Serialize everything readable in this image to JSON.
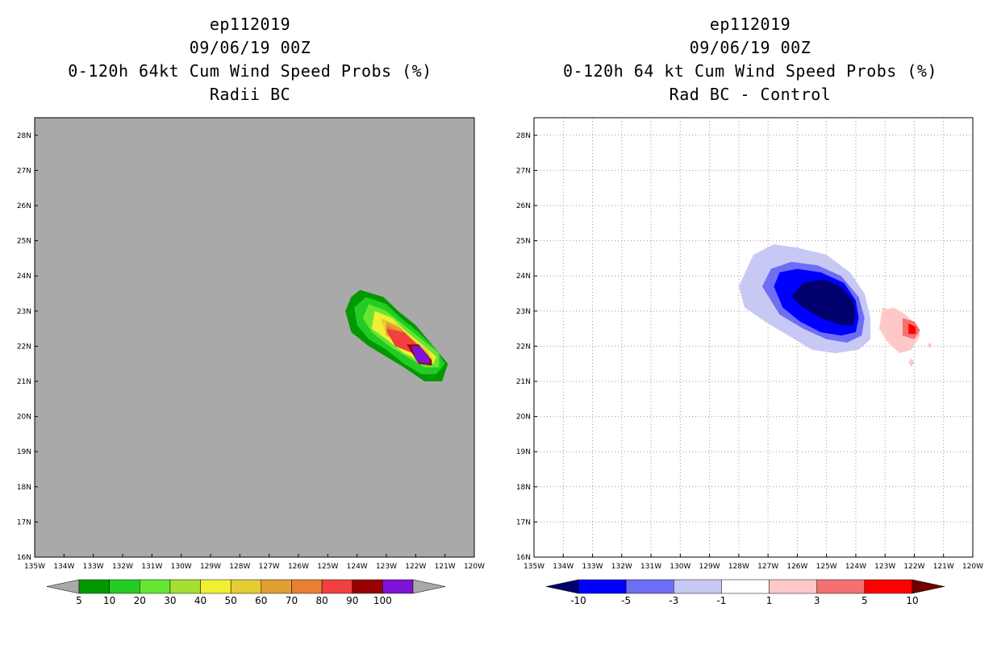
{
  "chart_data": [
    {
      "type": "heatmap",
      "title": {
        "storm": "ep112019",
        "date": "09/06/19 00Z",
        "product": "0-120h 64kt Cum Wind Speed Probs (%)",
        "subtitle": "Radii BC"
      },
      "xlim": [
        -135,
        -120
      ],
      "ylim": [
        16,
        28.5
      ],
      "x_ticks": [
        -135,
        -134,
        -133,
        -132,
        -131,
        -130,
        -129,
        -128,
        -127,
        -126,
        -125,
        -124,
        -123,
        -122,
        -121,
        -120
      ],
      "x_tick_labels": [
        "135W",
        "134W",
        "133W",
        "132W",
        "131W",
        "130W",
        "129W",
        "128W",
        "127W",
        "126W",
        "125W",
        "124W",
        "123W",
        "122W",
        "121W",
        "120W"
      ],
      "y_ticks": [
        16,
        17,
        18,
        19,
        20,
        21,
        22,
        23,
        24,
        25,
        26,
        27,
        28
      ],
      "y_tick_labels": [
        "16N",
        "17N",
        "18N",
        "19N",
        "20N",
        "21N",
        "22N",
        "23N",
        "24N",
        "25N",
        "26N",
        "27N",
        "28N"
      ],
      "grid": false,
      "background": "#a9a9a9",
      "colorbar": {
        "levels": [
          "5",
          "10",
          "20",
          "30",
          "40",
          "50",
          "60",
          "70",
          "80",
          "90",
          "100"
        ],
        "colors": [
          "#009900",
          "#22cc22",
          "#66e633",
          "#a3e033",
          "#f0f033",
          "#e6cc33",
          "#e0a033",
          "#e88033",
          "#f04040",
          "#990000",
          "#7e13d8"
        ],
        "under_color": "#a9a9a9",
        "over_color": "#a9a9a9"
      },
      "contours": [
        {
          "level": 5,
          "color": "#009900",
          "points": [
            [
              -123.9,
              23.6
            ],
            [
              -123.1,
              23.4
            ],
            [
              -122.6,
              23.0
            ],
            [
              -122.0,
              22.6
            ],
            [
              -121.4,
              22.0
            ],
            [
              -120.9,
              21.5
            ],
            [
              -121.1,
              21.0
            ],
            [
              -121.7,
              21.0
            ],
            [
              -122.4,
              21.4
            ],
            [
              -123.0,
              21.7
            ],
            [
              -123.6,
              22.0
            ],
            [
              -124.2,
              22.4
            ],
            [
              -124.4,
              23.0
            ],
            [
              -124.2,
              23.4
            ]
          ]
        },
        {
          "level": 10,
          "color": "#22cc22",
          "points": [
            [
              -123.7,
              23.4
            ],
            [
              -123.0,
              23.2
            ],
            [
              -122.5,
              22.8
            ],
            [
              -121.9,
              22.4
            ],
            [
              -121.3,
              21.9
            ],
            [
              -121.0,
              21.5
            ],
            [
              -121.3,
              21.2
            ],
            [
              -121.8,
              21.2
            ],
            [
              -122.4,
              21.5
            ],
            [
              -123.0,
              21.9
            ],
            [
              -123.6,
              22.2
            ],
            [
              -124.0,
              22.6
            ],
            [
              -124.1,
              23.1
            ]
          ]
        },
        {
          "level": 20,
          "color": "#66e633",
          "points": [
            [
              -123.6,
              23.2
            ],
            [
              -123.0,
              23.0
            ],
            [
              -122.4,
              22.6
            ],
            [
              -121.8,
              22.2
            ],
            [
              -121.2,
              21.8
            ],
            [
              -121.2,
              21.4
            ],
            [
              -121.7,
              21.4
            ],
            [
              -122.3,
              21.7
            ],
            [
              -122.9,
              22.0
            ],
            [
              -123.5,
              22.4
            ],
            [
              -123.8,
              22.8
            ]
          ]
        },
        {
          "level": 30,
          "color": "#f0f033",
          "points": [
            [
              -123.4,
              23.0
            ],
            [
              -122.8,
              22.8
            ],
            [
              -122.3,
              22.4
            ],
            [
              -121.7,
              22.0
            ],
            [
              -121.3,
              21.7
            ],
            [
              -121.4,
              21.5
            ],
            [
              -121.9,
              21.6
            ],
            [
              -122.4,
              21.8
            ],
            [
              -123.0,
              22.2
            ],
            [
              -123.5,
              22.5
            ]
          ]
        },
        {
          "level": 40,
          "color": "#e6cc33",
          "points": [
            [
              -123.2,
              22.8
            ],
            [
              -122.6,
              22.6
            ],
            [
              -122.1,
              22.2
            ],
            [
              -121.6,
              21.9
            ],
            [
              -121.4,
              21.6
            ],
            [
              -121.9,
              21.7
            ],
            [
              -122.5,
              22.0
            ],
            [
              -123.0,
              22.3
            ]
          ]
        },
        {
          "level": 50,
          "color": "#e0a033",
          "points": [
            [
              -123.0,
              22.7
            ],
            [
              -122.5,
              22.5
            ],
            [
              -122.0,
              22.1
            ],
            [
              -121.6,
              21.8
            ],
            [
              -121.5,
              21.6
            ],
            [
              -122.0,
              21.8
            ],
            [
              -122.6,
              22.1
            ],
            [
              -123.0,
              22.4
            ]
          ]
        },
        {
          "level": 60,
          "color": "#e88033",
          "points": [
            [
              -123.0,
              22.6
            ],
            [
              -122.5,
              22.4
            ],
            [
              -122.0,
              22.1
            ],
            [
              -121.6,
              21.7
            ],
            [
              -121.5,
              21.55
            ],
            [
              -122.0,
              21.75
            ],
            [
              -122.6,
              22.05
            ],
            [
              -123.0,
              22.35
            ]
          ]
        },
        {
          "level": 70,
          "color": "#f04040",
          "points": [
            [
              -123.0,
              22.5
            ],
            [
              -122.4,
              22.4
            ],
            [
              -121.95,
              22.05
            ],
            [
              -121.6,
              21.65
            ],
            [
              -121.55,
              21.55
            ],
            [
              -122.1,
              21.8
            ],
            [
              -122.7,
              22.0
            ],
            [
              -122.9,
              22.3
            ]
          ]
        },
        {
          "level": 80,
          "color": "#990000",
          "points": [
            [
              -122.3,
              22.05
            ],
            [
              -121.9,
              22.05
            ],
            [
              -121.45,
              21.6
            ],
            [
              -121.45,
              21.45
            ],
            [
              -121.9,
              21.5
            ]
          ]
        },
        {
          "level": 90,
          "color": "#7e13d8",
          "points": [
            [
              -122.15,
              22.0
            ],
            [
              -121.85,
              22.0
            ],
            [
              -121.5,
              21.6
            ],
            [
              -121.55,
              21.5
            ],
            [
              -121.95,
              21.55
            ]
          ]
        }
      ]
    },
    {
      "type": "heatmap",
      "title": {
        "storm": "ep112019",
        "date": "09/06/19 00Z",
        "product": "0-120h 64 kt Cum Wind Speed Probs (%)",
        "subtitle": "Rad BC - Control"
      },
      "xlim": [
        -135,
        -120
      ],
      "ylim": [
        16,
        28.5
      ],
      "x_ticks": [
        -135,
        -134,
        -133,
        -132,
        -131,
        -130,
        -129,
        -128,
        -127,
        -126,
        -125,
        -124,
        -123,
        -122,
        -121,
        -120
      ],
      "x_tick_labels": [
        "135W",
        "134W",
        "133W",
        "132W",
        "131W",
        "130W",
        "129W",
        "128W",
        "127W",
        "126W",
        "125W",
        "124W",
        "123W",
        "122W",
        "121W",
        "120W"
      ],
      "y_ticks": [
        16,
        17,
        18,
        19,
        20,
        21,
        22,
        23,
        24,
        25,
        26,
        27,
        28
      ],
      "y_tick_labels": [
        "16N",
        "17N",
        "18N",
        "19N",
        "20N",
        "21N",
        "22N",
        "23N",
        "24N",
        "25N",
        "26N",
        "27N",
        "28N"
      ],
      "grid": true,
      "background": "#ffffff",
      "colorbar": {
        "levels": [
          "-10",
          "-5",
          "-3",
          "-1",
          "1",
          "3",
          "5",
          "10"
        ],
        "colors": [
          "#0000ff",
          "#6e6ef5",
          "#c8c8f5",
          "#ffffff",
          "#ffc8c8",
          "#f57070",
          "#ff0000"
        ],
        "under_color": "#00006e",
        "over_color": "#6e0000"
      },
      "contours": [
        {
          "level": -1,
          "color": "#c8c8f5",
          "points": [
            [
              -128.0,
              23.7
            ],
            [
              -127.5,
              24.6
            ],
            [
              -126.8,
              24.9
            ],
            [
              -126.0,
              24.8
            ],
            [
              -125.0,
              24.6
            ],
            [
              -124.2,
              24.1
            ],
            [
              -123.7,
              23.5
            ],
            [
              -123.5,
              22.8
            ],
            [
              -123.5,
              22.2
            ],
            [
              -123.9,
              21.9
            ],
            [
              -124.7,
              21.8
            ],
            [
              -125.5,
              21.9
            ],
            [
              -126.3,
              22.3
            ],
            [
              -127.1,
              22.7
            ],
            [
              -127.8,
              23.1
            ]
          ]
        },
        {
          "level": -3,
          "color": "#6e6ef5",
          "points": [
            [
              -127.2,
              23.7
            ],
            [
              -126.9,
              24.2
            ],
            [
              -126.2,
              24.4
            ],
            [
              -125.3,
              24.3
            ],
            [
              -124.5,
              24.0
            ],
            [
              -123.9,
              23.4
            ],
            [
              -123.7,
              22.8
            ],
            [
              -123.8,
              22.3
            ],
            [
              -124.3,
              22.1
            ],
            [
              -125.0,
              22.2
            ],
            [
              -125.8,
              22.5
            ],
            [
              -126.6,
              22.9
            ]
          ]
        },
        {
          "level": -5,
          "color": "#0000ff",
          "points": [
            [
              -126.8,
              23.7
            ],
            [
              -126.6,
              24.1
            ],
            [
              -126.0,
              24.2
            ],
            [
              -125.2,
              24.1
            ],
            [
              -124.4,
              23.8
            ],
            [
              -124.0,
              23.3
            ],
            [
              -123.9,
              22.8
            ],
            [
              -124.0,
              22.4
            ],
            [
              -124.5,
              22.3
            ],
            [
              -125.2,
              22.4
            ],
            [
              -125.9,
              22.7
            ],
            [
              -126.5,
              23.1
            ]
          ]
        },
        {
          "level": -10,
          "color": "#00006e",
          "points": [
            [
              -126.2,
              23.4
            ],
            [
              -125.8,
              23.8
            ],
            [
              -125.1,
              23.9
            ],
            [
              -124.5,
              23.7
            ],
            [
              -124.1,
              23.3
            ],
            [
              -124.0,
              22.9
            ],
            [
              -124.1,
              22.6
            ],
            [
              -124.5,
              22.6
            ],
            [
              -125.2,
              22.8
            ],
            [
              -125.8,
              23.1
            ]
          ]
        },
        {
          "level": 1,
          "color": "#ffc8c8",
          "points": [
            [
              -123.1,
              23.0
            ],
            [
              -122.7,
              23.1
            ],
            [
              -122.3,
              22.9
            ],
            [
              -121.9,
              22.6
            ],
            [
              -121.8,
              22.3
            ],
            [
              -122.1,
              21.9
            ],
            [
              -122.5,
              21.8
            ],
            [
              -122.9,
              22.1
            ],
            [
              -123.2,
              22.5
            ]
          ]
        },
        {
          "level": 3,
          "color": "#f57070",
          "points": [
            [
              -122.4,
              22.8
            ],
            [
              -122.0,
              22.7
            ],
            [
              -121.8,
              22.45
            ],
            [
              -122.0,
              22.2
            ],
            [
              -122.4,
              22.3
            ]
          ]
        },
        {
          "level": 5,
          "color": "#ff0000",
          "points": [
            [
              -122.2,
              22.65
            ],
            [
              -121.95,
              22.55
            ],
            [
              -121.95,
              22.35
            ],
            [
              -122.2,
              22.35
            ]
          ]
        },
        {
          "level": 1,
          "color": "#ffc8c8",
          "points": [
            [
              -123.1,
              23.1
            ],
            [
              -122.9,
              23.05
            ],
            [
              -122.95,
              22.85
            ],
            [
              -123.1,
              22.9
            ]
          ]
        },
        {
          "level": 1,
          "color": "#ffc8c8",
          "points": [
            [
              -121.5,
              22.1
            ],
            [
              -121.4,
              22.05
            ],
            [
              -121.45,
              21.95
            ],
            [
              -121.55,
              22.0
            ]
          ]
        },
        {
          "level": 1,
          "color": "#ffc8c8",
          "points": [
            [
              -122.1,
              21.65
            ],
            [
              -122.0,
              21.55
            ],
            [
              -122.1,
              21.4
            ],
            [
              -122.2,
              21.55
            ]
          ]
        }
      ]
    }
  ]
}
